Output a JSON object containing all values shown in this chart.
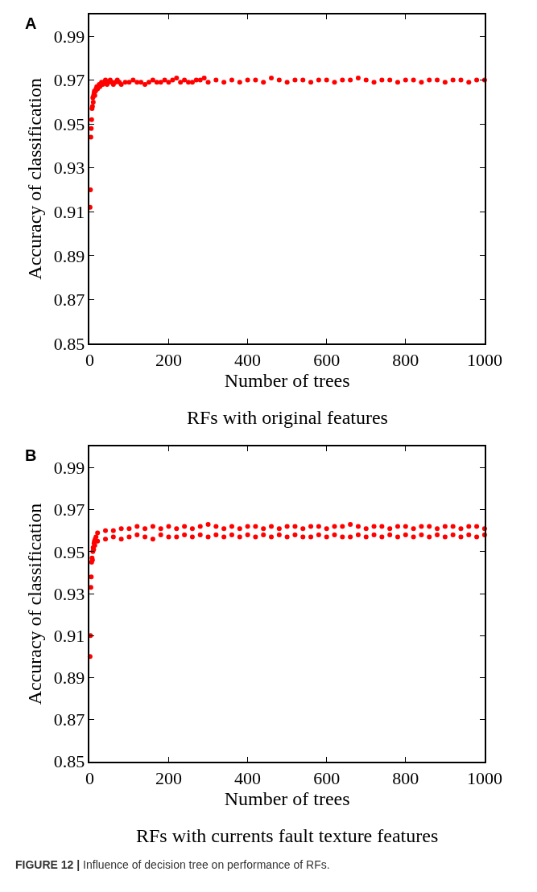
{
  "chart_data": [
    {
      "type": "scatter",
      "title": "RFs with original features",
      "xlabel": "Number of trees",
      "ylabel": "Accuracy of classification",
      "annotations": [
        "A"
      ],
      "xlim": [
        0,
        1000
      ],
      "xticks": [
        0,
        200,
        400,
        600,
        800,
        1000
      ],
      "ylim": [
        0.85,
        1.0
      ],
      "yticks": [
        0.85,
        0.87,
        0.89,
        0.91,
        0.93,
        0.95,
        0.97,
        0.99
      ],
      "grid": false,
      "series": [
        {
          "color": "#ff0000",
          "x": [
            1,
            2,
            3,
            4,
            5,
            6,
            7,
            8,
            9,
            10,
            11,
            12,
            13,
            15,
            16,
            18,
            20,
            24,
            26,
            30,
            33,
            36,
            40,
            44,
            48,
            52,
            56,
            60,
            65,
            70,
            75,
            80,
            90,
            100,
            110,
            120,
            130,
            140,
            150,
            160,
            170,
            180,
            190,
            200,
            210,
            220,
            230,
            240,
            250,
            260,
            270,
            280,
            290,
            300,
            320,
            340,
            360,
            380,
            400,
            420,
            440,
            460,
            480,
            500,
            520,
            540,
            560,
            580,
            600,
            620,
            640,
            660,
            680,
            700,
            720,
            740,
            760,
            780,
            800,
            820,
            840,
            860,
            880,
            900,
            920,
            940,
            960,
            980,
            1000
          ],
          "values": [
            0.912,
            0.92,
            0.944,
            0.948,
            0.952,
            0.957,
            0.958,
            0.962,
            0.96,
            0.963,
            0.964,
            0.965,
            0.963,
            0.965,
            0.966,
            0.967,
            0.966,
            0.968,
            0.967,
            0.969,
            0.968,
            0.969,
            0.97,
            0.968,
            0.969,
            0.97,
            0.969,
            0.968,
            0.969,
            0.97,
            0.969,
            0.968,
            0.969,
            0.969,
            0.97,
            0.969,
            0.969,
            0.968,
            0.969,
            0.97,
            0.969,
            0.969,
            0.97,
            0.969,
            0.97,
            0.971,
            0.969,
            0.97,
            0.969,
            0.969,
            0.97,
            0.97,
            0.971,
            0.969,
            0.97,
            0.969,
            0.97,
            0.969,
            0.97,
            0.97,
            0.969,
            0.971,
            0.97,
            0.969,
            0.97,
            0.97,
            0.969,
            0.97,
            0.97,
            0.969,
            0.97,
            0.97,
            0.971,
            0.97,
            0.969,
            0.97,
            0.97,
            0.969,
            0.97,
            0.97,
            0.969,
            0.97,
            0.97,
            0.969,
            0.97,
            0.97,
            0.969,
            0.97,
            0.97
          ]
        }
      ]
    },
    {
      "type": "scatter",
      "title": "RFs with currents fault texture features",
      "xlabel": "Number of trees",
      "ylabel": "Accuracy of classification",
      "annotations": [
        "B",
        "FIGURE 12 | Influence of decision tree on performance of RFs."
      ],
      "xlim": [
        0,
        1000
      ],
      "xticks": [
        0,
        200,
        400,
        600,
        800,
        1000
      ],
      "ylim": [
        0.85,
        1.0
      ],
      "yticks": [
        0.85,
        0.87,
        0.89,
        0.91,
        0.93,
        0.95,
        0.97,
        0.99
      ],
      "grid": false,
      "series": [
        {
          "color": "#ff0000",
          "x": [
            1,
            2,
            3,
            4,
            5,
            6,
            7,
            8,
            9,
            10,
            11,
            12,
            13,
            14,
            15,
            16,
            20,
            20,
            40,
            40,
            60,
            60,
            80,
            80,
            100,
            100,
            120,
            120,
            140,
            140,
            160,
            160,
            180,
            180,
            200,
            200,
            220,
            220,
            240,
            240,
            260,
            260,
            280,
            280,
            300,
            300,
            320,
            320,
            340,
            340,
            360,
            360,
            380,
            380,
            400,
            400,
            420,
            420,
            440,
            440,
            460,
            460,
            480,
            480,
            500,
            500,
            520,
            520,
            540,
            540,
            560,
            560,
            580,
            580,
            600,
            600,
            620,
            620,
            640,
            640,
            660,
            660,
            680,
            680,
            700,
            700,
            720,
            720,
            740,
            740,
            760,
            760,
            780,
            780,
            800,
            800,
            820,
            820,
            840,
            840,
            860,
            860,
            880,
            880,
            900,
            900,
            920,
            920,
            940,
            940,
            960,
            960,
            980,
            980,
            1000,
            1000
          ],
          "values": [
            0.9,
            0.91,
            0.933,
            0.938,
            0.945,
            0.947,
            0.946,
            0.95,
            0.952,
            0.951,
            0.954,
            0.955,
            0.953,
            0.956,
            0.955,
            0.957,
            0.955,
            0.959,
            0.956,
            0.96,
            0.957,
            0.96,
            0.956,
            0.961,
            0.957,
            0.961,
            0.958,
            0.962,
            0.957,
            0.961,
            0.956,
            0.962,
            0.958,
            0.961,
            0.957,
            0.962,
            0.957,
            0.961,
            0.958,
            0.962,
            0.957,
            0.961,
            0.958,
            0.962,
            0.957,
            0.963,
            0.958,
            0.962,
            0.957,
            0.961,
            0.958,
            0.962,
            0.957,
            0.961,
            0.958,
            0.962,
            0.957,
            0.962,
            0.958,
            0.961,
            0.957,
            0.962,
            0.958,
            0.961,
            0.957,
            0.962,
            0.958,
            0.962,
            0.957,
            0.961,
            0.957,
            0.962,
            0.958,
            0.962,
            0.957,
            0.961,
            0.958,
            0.962,
            0.957,
            0.962,
            0.957,
            0.963,
            0.958,
            0.962,
            0.957,
            0.961,
            0.958,
            0.962,
            0.957,
            0.962,
            0.958,
            0.961,
            0.957,
            0.962,
            0.958,
            0.962,
            0.957,
            0.961,
            0.958,
            0.962,
            0.957,
            0.962,
            0.958,
            0.961,
            0.957,
            0.962,
            0.958,
            0.962,
            0.957,
            0.961,
            0.958,
            0.962,
            0.957,
            0.962,
            0.958,
            0.961
          ]
        }
      ]
    }
  ]
}
